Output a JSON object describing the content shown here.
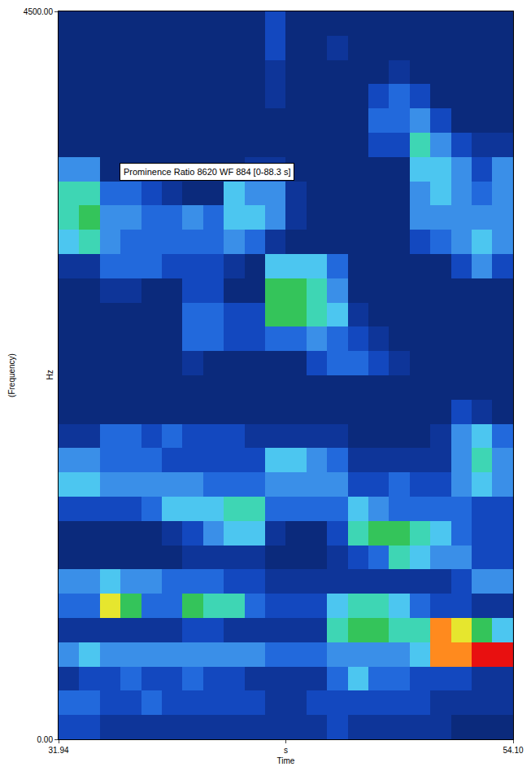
{
  "chart_data": {
    "type": "heatmap",
    "annotations": [
      {
        "text": "Prominence Ratio 8620 WF 884 [0-88.3 s]"
      }
    ],
    "xlabel": "Time",
    "ylabel": "(Frequency)",
    "ylabel_unit": "Hz",
    "xlim": [
      31.94,
      54.1
    ],
    "xticks": [
      31.94,
      {
        "value": 43.02,
        "label": "s"
      },
      {
        "value": 54.1,
        "label": "54.10"
      }
    ],
    "ylim": [
      0,
      4500
    ],
    "yticks": [
      {
        "value": 0,
        "label": "0.00"
      },
      {
        "value": 4500,
        "label": "4500.00"
      }
    ],
    "grid": false,
    "zlim": [
      0,
      10
    ],
    "x": [
      32.44,
      33.45,
      34.46,
      35.47,
      36.47,
      37.48,
      38.49,
      39.49,
      40.5,
      41.51,
      42.52,
      43.52,
      44.53,
      45.54,
      46.54,
      47.55,
      48.56,
      49.57,
      50.57,
      51.58,
      52.59,
      53.6
    ],
    "y": [
      75,
      225,
      375,
      525,
      675,
      825,
      975,
      1125,
      1275,
      1425,
      1575,
      1725,
      1875,
      2025,
      2175,
      2325,
      2475,
      2625,
      2775,
      2925,
      3075,
      3225,
      3375,
      3525,
      3675,
      3825,
      3975,
      4125,
      4275,
      4425
    ],
    "z": [
      [
        2,
        2,
        1,
        1,
        1,
        1,
        1,
        1,
        1,
        1,
        1,
        1,
        1,
        2,
        1,
        1,
        1,
        1,
        1,
        0,
        0,
        0
      ],
      [
        3,
        3,
        2,
        2,
        3,
        2,
        2,
        2,
        2,
        2,
        1,
        1,
        2,
        2,
        2,
        2,
        2,
        2,
        1,
        1,
        1,
        1
      ],
      [
        1,
        2,
        2,
        3,
        2,
        2,
        3,
        2,
        2,
        1,
        1,
        1,
        1,
        3,
        5,
        3,
        3,
        2,
        2,
        2,
        1,
        1
      ],
      [
        4,
        5,
        4,
        4,
        4,
        4,
        4,
        4,
        4,
        4,
        3,
        3,
        3,
        4,
        4,
        4,
        4,
        5,
        9,
        9,
        10,
        10
      ],
      [
        1,
        1,
        1,
        1,
        1,
        1,
        2,
        2,
        1,
        1,
        1,
        1,
        1,
        6,
        7,
        7,
        6,
        6,
        9,
        8,
        7,
        5
      ],
      [
        3,
        3,
        8,
        7,
        3,
        3,
        7,
        6,
        6,
        3,
        2,
        2,
        2,
        5,
        6,
        6,
        5,
        3,
        2,
        2,
        1,
        1
      ],
      [
        4,
        4,
        5,
        4,
        4,
        3,
        3,
        3,
        2,
        2,
        1,
        1,
        1,
        1,
        1,
        1,
        1,
        1,
        1,
        2,
        4,
        4
      ],
      [
        0,
        0,
        0,
        0,
        0,
        0,
        1,
        1,
        1,
        1,
        0,
        0,
        0,
        1,
        2,
        3,
        6,
        5,
        4,
        4,
        2,
        2
      ],
      [
        0,
        0,
        0,
        0,
        0,
        1,
        2,
        4,
        5,
        5,
        1,
        0,
        0,
        2,
        6,
        7,
        7,
        6,
        5,
        3,
        2,
        2
      ],
      [
        2,
        2,
        2,
        2,
        3,
        5,
        5,
        5,
        6,
        6,
        3,
        3,
        3,
        3,
        5,
        4,
        3,
        3,
        3,
        3,
        2,
        2
      ],
      [
        5,
        5,
        4,
        4,
        4,
        4,
        4,
        3,
        3,
        3,
        4,
        4,
        4,
        4,
        2,
        2,
        3,
        2,
        2,
        4,
        5,
        4
      ],
      [
        4,
        4,
        3,
        3,
        3,
        2,
        2,
        2,
        2,
        2,
        5,
        5,
        4,
        3,
        1,
        1,
        1,
        1,
        1,
        4,
        6,
        4
      ],
      [
        1,
        1,
        3,
        3,
        2,
        3,
        2,
        2,
        2,
        1,
        1,
        1,
        1,
        1,
        0,
        0,
        0,
        0,
        1,
        4,
        5,
        3
      ],
      [
        0,
        0,
        0,
        0,
        0,
        0,
        0,
        0,
        0,
        0,
        0,
        0,
        0,
        0,
        0,
        0,
        0,
        0,
        0,
        2,
        1,
        0
      ],
      [
        0,
        0,
        0,
        0,
        0,
        0,
        0,
        0,
        0,
        0,
        0,
        0,
        0,
        0,
        0,
        0,
        0,
        0,
        0,
        0,
        0,
        0
      ],
      [
        0,
        0,
        0,
        0,
        0,
        0,
        1,
        0,
        0,
        0,
        0,
        0,
        2,
        3,
        3,
        2,
        1,
        0,
        0,
        0,
        0,
        0
      ],
      [
        0,
        0,
        0,
        0,
        0,
        0,
        3,
        3,
        2,
        2,
        3,
        3,
        4,
        3,
        2,
        1,
        0,
        0,
        0,
        0,
        0,
        0
      ],
      [
        0,
        0,
        0,
        0,
        0,
        0,
        3,
        3,
        2,
        2,
        7,
        7,
        6,
        5,
        1,
        0,
        0,
        0,
        0,
        0,
        0,
        0
      ],
      [
        0,
        0,
        1,
        1,
        0,
        0,
        2,
        2,
        0,
        0,
        7,
        7,
        6,
        4,
        0,
        0,
        0,
        0,
        0,
        0,
        0,
        0
      ],
      [
        1,
        1,
        3,
        3,
        3,
        2,
        2,
        2,
        1,
        0,
        5,
        5,
        5,
        3,
        0,
        0,
        0,
        0,
        0,
        2,
        4,
        2
      ],
      [
        5,
        6,
        4,
        3,
        3,
        3,
        3,
        3,
        4,
        3,
        1,
        0,
        0,
        0,
        0,
        0,
        0,
        2,
        3,
        4,
        5,
        4
      ],
      [
        6,
        7,
        4,
        4,
        3,
        3,
        4,
        3,
        5,
        5,
        4,
        1,
        0,
        0,
        0,
        0,
        0,
        4,
        4,
        4,
        4,
        4
      ],
      [
        6,
        6,
        3,
        3,
        2,
        1,
        0,
        0,
        5,
        4,
        4,
        1,
        0,
        0,
        0,
        0,
        0,
        4,
        5,
        4,
        3,
        4
      ],
      [
        4,
        4,
        0,
        0,
        0,
        0,
        0,
        0,
        0,
        1,
        1,
        0,
        0,
        0,
        0,
        0,
        0,
        5,
        5,
        4,
        2,
        4
      ],
      [
        0,
        0,
        0,
        0,
        0,
        0,
        0,
        0,
        0,
        0,
        0,
        0,
        0,
        0,
        0,
        2,
        2,
        6,
        4,
        2,
        1,
        1
      ],
      [
        0,
        0,
        0,
        0,
        0,
        0,
        0,
        0,
        0,
        0,
        0,
        0,
        0,
        0,
        0,
        3,
        3,
        4,
        2,
        0,
        0,
        0
      ],
      [
        0,
        0,
        0,
        0,
        0,
        0,
        0,
        0,
        0,
        0,
        1,
        0,
        0,
        0,
        0,
        2,
        3,
        2,
        0,
        0,
        0,
        0
      ],
      [
        0,
        0,
        0,
        0,
        0,
        0,
        0,
        0,
        0,
        0,
        1,
        0,
        0,
        0,
        0,
        0,
        1,
        0,
        0,
        0,
        0,
        0
      ],
      [
        0,
        0,
        0,
        0,
        0,
        0,
        0,
        0,
        0,
        0,
        2,
        0,
        0,
        1,
        0,
        0,
        0,
        0,
        0,
        0,
        0,
        0
      ],
      [
        0,
        0,
        0,
        0,
        0,
        0,
        0,
        0,
        0,
        0,
        2,
        0,
        0,
        0,
        0,
        0,
        0,
        0,
        0,
        0,
        0,
        0
      ]
    ]
  }
}
